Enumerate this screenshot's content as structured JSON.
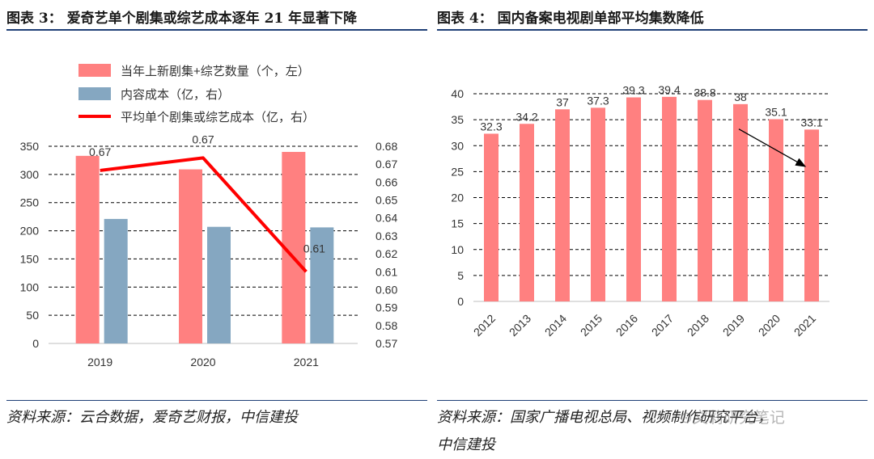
{
  "left": {
    "title": "图表 3：  爱奇艺单个剧集或综艺成本逐年 21 年显著下降",
    "source": "资料来源：云合数据，爱奇艺财报，中信建投"
  },
  "right": {
    "title": "图表 4：  国内备案电视剧单部平均集数降低",
    "source_line1": "资料来源：国家广播电视总局、视频制作研究平台，",
    "source_line2": "中信建投"
  },
  "watermark": "⊙文莉研究笔记",
  "chart_data": [
    {
      "type": "bar",
      "categories": [
        "2019",
        "2020",
        "2021"
      ],
      "series": [
        {
          "name": "当年上新剧集+综艺数量（个，左）",
          "type": "bar",
          "axis": "left",
          "color": "#ff8080",
          "values": [
            333,
            309,
            340
          ]
        },
        {
          "name": "内容成本（亿，右）",
          "type": "bar",
          "axis": "left",
          "color": "#85a7c1",
          "values": [
            221,
            207,
            206
          ]
        },
        {
          "name": "平均单个剧集或综艺成本（亿，右）",
          "type": "line",
          "axis": "right",
          "color": "#ff0000",
          "values": [
            0.6665,
            0.6735,
            0.61
          ],
          "data_labels": [
            "0.67",
            "0.67",
            "0.61"
          ]
        }
      ],
      "ylim_left": [
        0,
        350
      ],
      "yticks_left": [
        "0",
        "50",
        "100",
        "150",
        "200",
        "250",
        "300",
        "350"
      ],
      "ylim_right": [
        0.57,
        0.68
      ],
      "yticks_right": [
        "0.57",
        "0.58",
        "0.59",
        "0.60",
        "0.61",
        "0.62",
        "0.63",
        "0.64",
        "0.65",
        "0.66",
        "0.67",
        "0.68"
      ],
      "grid": true,
      "legend_position": "top"
    },
    {
      "type": "bar",
      "categories": [
        "2012",
        "2013",
        "2014",
        "2015",
        "2016",
        "2017",
        "2018",
        "2019",
        "2020",
        "2021"
      ],
      "values": [
        32.3,
        34.2,
        37,
        37.3,
        39.3,
        39.4,
        38.8,
        38,
        35.1,
        33.1
      ],
      "data_labels": [
        "32.3",
        "34.2",
        "37",
        "37.3",
        "39.3",
        "39.4",
        "38.8",
        "38",
        "35.1",
        "33.1"
      ],
      "color": "#ff8080",
      "ylim": [
        0,
        40
      ],
      "yticks": [
        "0",
        "5",
        "10",
        "15",
        "20",
        "25",
        "30",
        "35",
        "40"
      ],
      "grid": true,
      "annotation": "downward trend arrow from 2019 to 2021"
    }
  ]
}
